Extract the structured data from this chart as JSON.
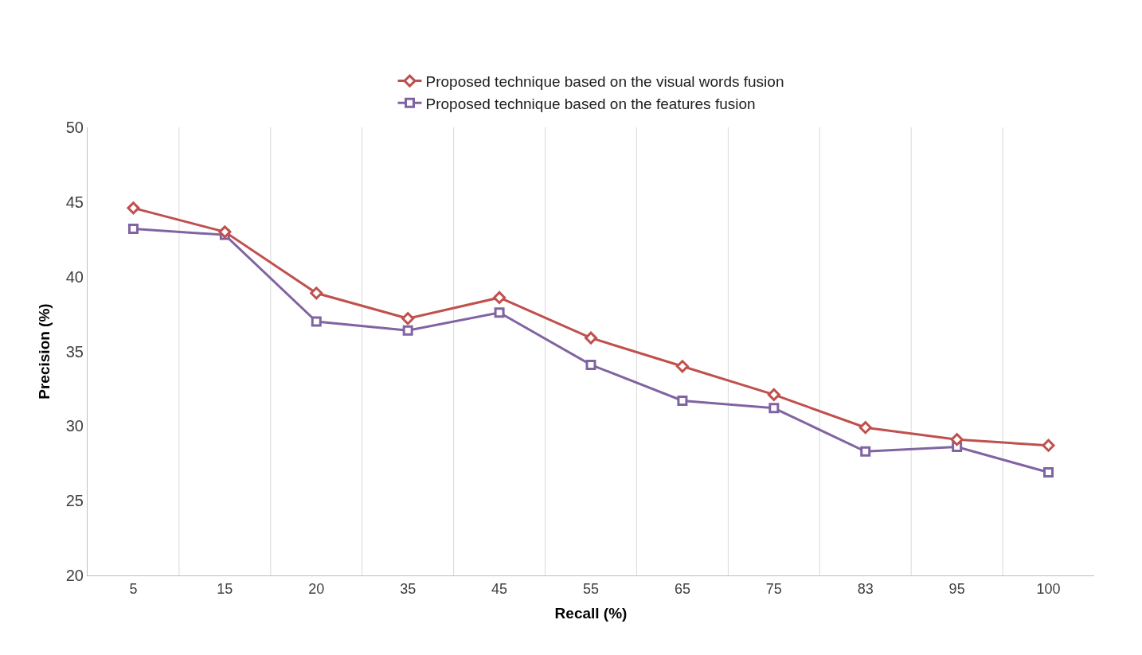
{
  "chart_data": {
    "type": "line",
    "xlabel": "Recall (%)",
    "ylabel": "Precision (%)",
    "categories": [
      "5",
      "15",
      "20",
      "35",
      "45",
      "55",
      "65",
      "75",
      "83",
      "95",
      "100"
    ],
    "series": [
      {
        "name": "Proposed technique based on the visual words fusion",
        "color": "#c0504d",
        "marker": "diamond",
        "values": [
          44.6,
          43.0,
          38.9,
          37.2,
          38.6,
          35.9,
          34.0,
          32.1,
          29.9,
          29.1,
          28.7
        ]
      },
      {
        "name": "Proposed technique based on the features fusion",
        "color": "#8064a2",
        "marker": "square",
        "values": [
          43.2,
          42.8,
          37.0,
          36.4,
          37.6,
          34.1,
          31.7,
          31.2,
          28.3,
          28.6,
          26.9
        ]
      }
    ],
    "ylim": [
      20,
      50
    ],
    "yticks": [
      20,
      25,
      30,
      35,
      40,
      45,
      50
    ],
    "grid": "x",
    "legend": "top",
    "line_style": "solid"
  }
}
